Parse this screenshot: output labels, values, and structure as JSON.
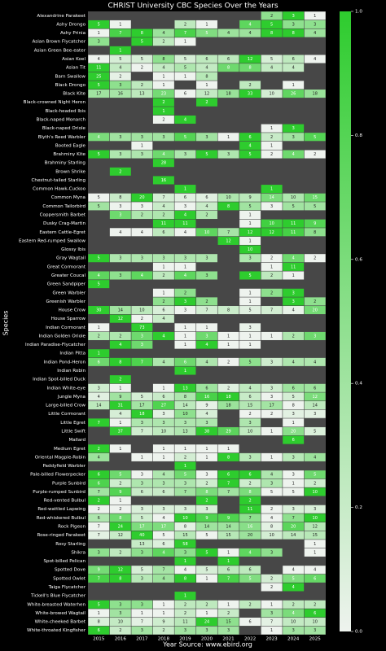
{
  "chart_data": {
    "type": "heatmap",
    "title": "CHRIST University CBC Species Over the Years",
    "x_label": "Year     Source: www.ebird.org",
    "y_label": "Species",
    "x": [
      "2015",
      "2016",
      "2017",
      "2018",
      "2019",
      "2020",
      "2021",
      "2022",
      "2023",
      "2024",
      "2025"
    ],
    "categories": [
      "Alexandrine Parakeet",
      "Ashy Drongo",
      "Ashy Prinia",
      "Asian Brown Flycatcher",
      "Asian Green Bee-eater",
      "Asian Koel",
      "Asian Tit",
      "Barn Swallow",
      "Black Drongo",
      "Black Kite",
      "Black-crowned Night Heron",
      "Black-headed Ibis",
      "Black-naped Monarch",
      "Black-naped Oriole",
      "Blyth's Reed Warbler",
      "Booted Eagle",
      "Brahminy Kite",
      "Brahminy Starling",
      "Brown Shrike",
      "Chestnut-tailed Starling",
      "Common Hawk-Cuckoo",
      "Common Myna",
      "Common Tailorbird",
      "Coppersmith Barbet",
      "Dusky Crag-Martin",
      "Eastern Cattle-Egret",
      "Eastern Red-rumped Swallow",
      "Glossy Ibis",
      "Gray Wagtail",
      "Great Cormorant",
      "Greater Coucal",
      "Green Sandpiper",
      "Green Warbler",
      "Greenish Warbler",
      "House Crow",
      "House Sparrow",
      "Indian Cormorant",
      "Indian Golden Oriole",
      "Indian Paradise-Flycatcher",
      "Indian Pitta",
      "Indian Pond-Heron",
      "Indian Robin",
      "Indian Spot-billed Duck",
      "Indian White-eye",
      "Jungle Myna",
      "Large-billed Crow",
      "Little Cormorant",
      "Little Egret",
      "Little Swift",
      "Mallard",
      "Medium Egret",
      "Oriental Magpie-Robin",
      "Paddyfield Warbler",
      "Pale-billed Flowerpecker",
      "Purple Sunbird",
      "Purple-rumped Sunbird",
      "Red-vented Bulbul",
      "Red-wattled Lapwing",
      "Red-whiskered Bulbul",
      "Rock Pigeon",
      "Rose-ringed Parakeet",
      "Rosy Starling",
      "Shikra",
      "Spot-billed Pelican",
      "Spotted Dove",
      "Spotted Owlet",
      "Taiga Flycatcher",
      "Tickell's Blue Flycatcher",
      "White-breasted Waterhen",
      "White-browed Wagtail",
      "White-cheeked Barbet",
      "White-throated Kingfisher"
    ],
    "values": [
      [
        null,
        null,
        null,
        null,
        null,
        null,
        null,
        null,
        2,
        3,
        1
      ],
      [
        5,
        1,
        null,
        null,
        2,
        1,
        null,
        4,
        5,
        3,
        3
      ],
      [
        1,
        7,
        8,
        4,
        7,
        5,
        4,
        4,
        8,
        8,
        4
      ],
      [
        3,
        null,
        5,
        2,
        1,
        null,
        null,
        null,
        null,
        null,
        null
      ],
      [
        null,
        1,
        null,
        null,
        null,
        null,
        null,
        null,
        null,
        null,
        null
      ],
      [
        4,
        5,
        5,
        8,
        5,
        6,
        6,
        12,
        5,
        6,
        4
      ],
      [
        11,
        4,
        2,
        4,
        5,
        4,
        8,
        8,
        4,
        4,
        null
      ],
      [
        25,
        2,
        null,
        1,
        1,
        8,
        null,
        null,
        null,
        null,
        null
      ],
      [
        5,
        3,
        2,
        1,
        null,
        1,
        null,
        2,
        null,
        1,
        null
      ],
      [
        17,
        16,
        13,
        23,
        6,
        12,
        18,
        33,
        10,
        26,
        18
      ],
      [
        null,
        null,
        null,
        2,
        null,
        2,
        null,
        null,
        null,
        null,
        null
      ],
      [
        null,
        null,
        null,
        1,
        null,
        null,
        null,
        null,
        null,
        null,
        null
      ],
      [
        null,
        null,
        null,
        2,
        4,
        null,
        null,
        null,
        null,
        null,
        null
      ],
      [
        null,
        null,
        null,
        null,
        null,
        null,
        null,
        null,
        1,
        3,
        null
      ],
      [
        4,
        3,
        3,
        3,
        5,
        3,
        1,
        6,
        2,
        3,
        5
      ],
      [
        null,
        null,
        1,
        null,
        null,
        null,
        null,
        4,
        1,
        null,
        null
      ],
      [
        5,
        3,
        3,
        4,
        3,
        5,
        3,
        5,
        2,
        4,
        2
      ],
      [
        null,
        null,
        null,
        28,
        null,
        null,
        null,
        null,
        null,
        null,
        null
      ],
      [
        null,
        2,
        null,
        null,
        null,
        null,
        null,
        null,
        null,
        null,
        null
      ],
      [
        null,
        null,
        null,
        16,
        null,
        null,
        null,
        null,
        null,
        null,
        null
      ],
      [
        null,
        null,
        null,
        null,
        1,
        null,
        null,
        null,
        1,
        null,
        null
      ],
      [
        5,
        8,
        20,
        7,
        6,
        6,
        10,
        9,
        14,
        10,
        15
      ],
      [
        5,
        3,
        3,
        4,
        3,
        4,
        8,
        5,
        3,
        5,
        5
      ],
      [
        null,
        3,
        2,
        2,
        4,
        2,
        null,
        1,
        null,
        null,
        null
      ],
      [
        null,
        null,
        null,
        11,
        11,
        null,
        null,
        1,
        10,
        11,
        9
      ],
      [
        null,
        4,
        4,
        6,
        4,
        10,
        7,
        12,
        12,
        11,
        8
      ],
      [
        null,
        null,
        null,
        null,
        null,
        null,
        12,
        1,
        null,
        null,
        null
      ],
      [
        null,
        null,
        null,
        null,
        null,
        null,
        null,
        10,
        null,
        null,
        null
      ],
      [
        5,
        3,
        3,
        3,
        3,
        3,
        null,
        3,
        2,
        4,
        2
      ],
      [
        null,
        null,
        null,
        1,
        1,
        null,
        null,
        null,
        1,
        11,
        null
      ],
      [
        4,
        3,
        4,
        2,
        4,
        3,
        null,
        5,
        2,
        1,
        null
      ],
      [
        5,
        null,
        null,
        null,
        null,
        null,
        null,
        null,
        null,
        null,
        null
      ],
      [
        null,
        null,
        null,
        1,
        2,
        null,
        null,
        1,
        2,
        3,
        null
      ],
      [
        null,
        null,
        null,
        2,
        3,
        2,
        null,
        1,
        null,
        3,
        2
      ],
      [
        30,
        14,
        10,
        6,
        3,
        7,
        8,
        5,
        7,
        4,
        20
      ],
      [
        null,
        12,
        2,
        4,
        null,
        null,
        null,
        null,
        null,
        null,
        null
      ],
      [
        1,
        null,
        73,
        null,
        1,
        1,
        null,
        3,
        null,
        null,
        null
      ],
      [
        2,
        2,
        3,
        4,
        1,
        3,
        1,
        1,
        1,
        2,
        3
      ],
      [
        null,
        4,
        3,
        null,
        1,
        4,
        1,
        1,
        null,
        null,
        null
      ],
      [
        1,
        null,
        null,
        null,
        null,
        null,
        null,
        null,
        null,
        null,
        null
      ],
      [
        6,
        8,
        7,
        4,
        6,
        4,
        2,
        5,
        3,
        4,
        4
      ],
      [
        null,
        null,
        null,
        null,
        1,
        null,
        null,
        null,
        null,
        null,
        null
      ],
      [
        null,
        2,
        null,
        null,
        null,
        null,
        null,
        null,
        null,
        null,
        null
      ],
      [
        3,
        1,
        null,
        1,
        13,
        6,
        2,
        4,
        3,
        6,
        6
      ],
      [
        4,
        9,
        5,
        6,
        8,
        16,
        18,
        6,
        3,
        5,
        12
      ],
      [
        14,
        31,
        17,
        27,
        14,
        9,
        18,
        15,
        17,
        8,
        14
      ],
      [
        null,
        4,
        18,
        3,
        10,
        4,
        null,
        2,
        2,
        3,
        3
      ],
      [
        7,
        1,
        3,
        3,
        3,
        3,
        null,
        3,
        null,
        1,
        null
      ],
      [
        null,
        37,
        7,
        10,
        13,
        38,
        29,
        10,
        1,
        20,
        5
      ],
      [
        null,
        null,
        null,
        null,
        null,
        null,
        null,
        null,
        null,
        6,
        null
      ],
      [
        2,
        1,
        null,
        1,
        1,
        1,
        1,
        null,
        null,
        null,
        null
      ],
      [
        4,
        null,
        1,
        1,
        2,
        1,
        8,
        3,
        1,
        3,
        4
      ],
      [
        null,
        null,
        null,
        null,
        1,
        null,
        null,
        null,
        null,
        null,
        null
      ],
      [
        6,
        5,
        3,
        4,
        5,
        3,
        6,
        6,
        4,
        3,
        5
      ],
      [
        6,
        2,
        3,
        3,
        3,
        2,
        7,
        2,
        3,
        1,
        2
      ],
      [
        7,
        9,
        6,
        6,
        7,
        8,
        7,
        8,
        5,
        5,
        10
      ],
      [
        2,
        1,
        null,
        null,
        null,
        2,
        null,
        2,
        null,
        null,
        null
      ],
      [
        2,
        2,
        3,
        3,
        3,
        3,
        null,
        11,
        2,
        3,
        3
      ],
      [
        6,
        8,
        5,
        4,
        10,
        9,
        9,
        7,
        4,
        7,
        10
      ],
      [
        7,
        24,
        17,
        17,
        8,
        14,
        14,
        16,
        8,
        20,
        12
      ],
      [
        7,
        12,
        40,
        5,
        15,
        5,
        15,
        20,
        10,
        14,
        15
      ],
      [
        null,
        null,
        13,
        6,
        58,
        null,
        null,
        null,
        null,
        null,
        1
      ],
      [
        3,
        2,
        3,
        4,
        3,
        5,
        1,
        4,
        3,
        null,
        1
      ],
      [
        null,
        null,
        null,
        null,
        1,
        null,
        1,
        null,
        null,
        null,
        null
      ],
      [
        9,
        12,
        5,
        7,
        4,
        5,
        6,
        6,
        null,
        4,
        4
      ],
      [
        7,
        8,
        3,
        4,
        8,
        1,
        7,
        5,
        2,
        5,
        6
      ],
      [
        null,
        null,
        null,
        null,
        null,
        null,
        null,
        null,
        2,
        4,
        null
      ],
      [
        null,
        null,
        null,
        null,
        1,
        null,
        null,
        null,
        null,
        null,
        null
      ],
      [
        5,
        3,
        3,
        1,
        2,
        2,
        1,
        2,
        1,
        2,
        2
      ],
      [
        1,
        3,
        1,
        1,
        2,
        1,
        2,
        null,
        3,
        4,
        6
      ],
      [
        8,
        10,
        7,
        9,
        11,
        24,
        15,
        6,
        7,
        10,
        10
      ],
      [
        6,
        2,
        3,
        2,
        3,
        3,
        3,
        null,
        1,
        3,
        3
      ]
    ],
    "colormap": [
      "#eef3ee",
      "#2ecc2e"
    ],
    "null_color": "#474747",
    "colorbar_ticks": [
      {
        "value": 0,
        "label": "0.0"
      },
      {
        "value": 0.2,
        "label": "0.2"
      },
      {
        "value": 0.4,
        "label": "0.4"
      },
      {
        "value": 0.6,
        "label": "0.6"
      },
      {
        "value": 0.8,
        "label": "0.8"
      },
      {
        "value": 1,
        "label": "1.0"
      }
    ]
  }
}
